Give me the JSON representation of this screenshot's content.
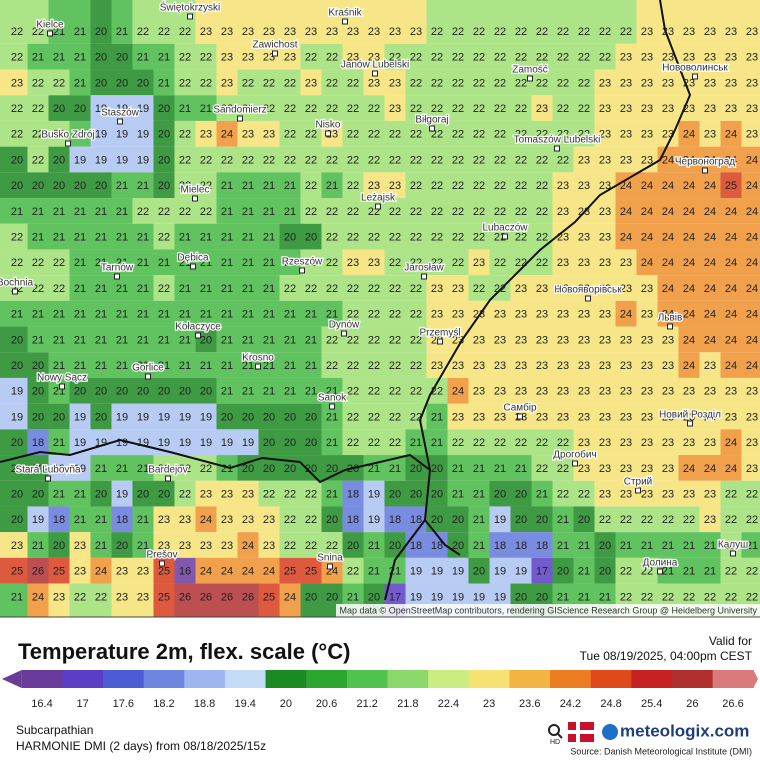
{
  "map": {
    "attribution": "Map data © OpenStreetMap contributors, rendering GIScience Research Group @ Heidelberg University",
    "places": [
      "Kielce",
      "Świętokrzyski",
      "Kraśnik",
      "Zawichost",
      "Janów Lubelski",
      "Zamość",
      "Нововолинськ",
      "Staszów",
      "Sandomierz",
      "Busko Zdrój",
      "Nisko",
      "Biłgoraj",
      "Tomaszów Lubelski",
      "Червоноград",
      "Mielec",
      "Leżajsk",
      "Lubaczów",
      "Tarnów",
      "Dębica",
      "Rzeszów",
      "Jarosław",
      "Новояворівськ",
      "Bochnia",
      "Львів",
      "Kołaczyce",
      "Dynów",
      "Przemyśl",
      "Krosno",
      "Gorlice",
      "Nowy Sącz",
      "Sanok",
      "Самбір",
      "Новий Розділ",
      "Stará Ľubovňa",
      "Bardejov",
      "Дрогобич",
      "Стрий",
      "Prešov",
      "Snina",
      "Долина",
      "Калуш"
    ],
    "grid": [
      [
        22,
        22,
        21,
        21,
        20,
        21,
        22,
        22,
        22,
        23,
        23,
        23,
        23,
        23,
        23,
        23,
        23,
        23,
        23,
        23,
        22,
        22,
        22,
        22,
        22,
        22,
        22,
        22,
        22,
        22,
        23,
        23,
        23,
        23,
        23,
        23
      ],
      [
        22,
        21,
        21,
        21,
        20,
        20,
        21,
        21,
        22,
        22,
        23,
        23,
        23,
        23,
        22,
        22,
        23,
        23,
        22,
        22,
        22,
        22,
        22,
        22,
        22,
        22,
        22,
        22,
        22,
        23,
        23,
        23,
        23,
        23,
        23,
        23
      ],
      [
        23,
        22,
        22,
        21,
        20,
        20,
        20,
        21,
        22,
        22,
        23,
        22,
        22,
        22,
        23,
        22,
        22,
        23,
        23,
        22,
        22,
        22,
        22,
        22,
        22,
        22,
        22,
        22,
        23,
        23,
        23,
        23,
        23,
        23,
        23,
        23
      ],
      [
        22,
        22,
        20,
        20,
        19,
        19,
        19,
        20,
        21,
        21,
        22,
        22,
        22,
        22,
        22,
        22,
        22,
        22,
        23,
        22,
        22,
        22,
        22,
        22,
        22,
        23,
        22,
        22,
        23,
        23,
        23,
        23,
        23,
        23,
        23,
        23
      ],
      [
        22,
        22,
        22,
        21,
        19,
        19,
        19,
        20,
        22,
        23,
        24,
        23,
        23,
        22,
        22,
        23,
        22,
        22,
        22,
        22,
        22,
        22,
        22,
        22,
        22,
        22,
        22,
        22,
        23,
        23,
        23,
        23,
        24,
        23,
        24,
        23
      ],
      [
        20,
        22,
        20,
        19,
        19,
        19,
        19,
        20,
        22,
        22,
        22,
        22,
        22,
        22,
        22,
        22,
        22,
        22,
        22,
        22,
        22,
        22,
        22,
        22,
        22,
        22,
        22,
        23,
        23,
        23,
        23,
        24,
        24,
        24,
        24,
        24
      ],
      [
        20,
        20,
        20,
        20,
        20,
        21,
        21,
        20,
        22,
        22,
        21,
        21,
        21,
        21,
        22,
        21,
        22,
        23,
        23,
        22,
        22,
        22,
        22,
        22,
        22,
        22,
        23,
        23,
        23,
        24,
        24,
        24,
        24,
        24,
        25,
        24
      ],
      [
        21,
        21,
        21,
        21,
        21,
        21,
        22,
        22,
        22,
        22,
        21,
        21,
        21,
        21,
        22,
        22,
        22,
        22,
        22,
        22,
        22,
        22,
        22,
        22,
        22,
        22,
        23,
        23,
        23,
        24,
        24,
        24,
        24,
        24,
        24,
        24
      ],
      [
        22,
        21,
        21,
        21,
        21,
        21,
        21,
        22,
        21,
        21,
        21,
        21,
        21,
        20,
        20,
        22,
        22,
        22,
        22,
        22,
        22,
        22,
        22,
        22,
        22,
        22,
        23,
        23,
        23,
        24,
        24,
        24,
        24,
        24,
        24,
        24
      ],
      [
        22,
        22,
        22,
        21,
        21,
        21,
        21,
        21,
        21,
        21,
        21,
        21,
        21,
        21,
        22,
        22,
        23,
        23,
        22,
        22,
        22,
        22,
        23,
        22,
        22,
        22,
        23,
        23,
        23,
        23,
        24,
        24,
        24,
        24,
        24,
        24
      ],
      [
        22,
        22,
        22,
        21,
        21,
        21,
        21,
        22,
        21,
        21,
        21,
        21,
        21,
        22,
        22,
        22,
        22,
        22,
        22,
        22,
        23,
        23,
        22,
        22,
        23,
        23,
        23,
        23,
        23,
        23,
        23,
        24,
        24,
        24,
        24,
        24
      ],
      [
        21,
        21,
        21,
        21,
        21,
        21,
        21,
        21,
        21,
        21,
        21,
        21,
        21,
        21,
        21,
        21,
        22,
        22,
        22,
        22,
        23,
        23,
        23,
        23,
        23,
        23,
        23,
        23,
        23,
        24,
        23,
        24,
        24,
        24,
        24,
        24
      ],
      [
        20,
        21,
        21,
        21,
        21,
        21,
        21,
        21,
        21,
        20,
        21,
        21,
        21,
        21,
        21,
        22,
        22,
        22,
        22,
        22,
        23,
        23,
        23,
        23,
        23,
        23,
        23,
        23,
        23,
        23,
        23,
        23,
        24,
        24,
        24,
        24
      ],
      [
        20,
        20,
        21,
        21,
        21,
        21,
        21,
        21,
        21,
        21,
        21,
        21,
        21,
        21,
        21,
        22,
        22,
        22,
        22,
        22,
        23,
        23,
        23,
        23,
        23,
        23,
        23,
        23,
        23,
        23,
        23,
        23,
        24,
        23,
        24,
        24
      ],
      [
        19,
        20,
        21,
        20,
        20,
        20,
        20,
        20,
        20,
        20,
        21,
        21,
        21,
        21,
        21,
        21,
        22,
        22,
        22,
        22,
        22,
        24,
        23,
        23,
        23,
        23,
        23,
        23,
        23,
        23,
        23,
        23,
        23,
        23,
        23,
        23
      ],
      [
        19,
        20,
        20,
        19,
        20,
        19,
        19,
        19,
        19,
        19,
        20,
        20,
        20,
        20,
        20,
        21,
        22,
        22,
        22,
        22,
        21,
        23,
        23,
        23,
        23,
        23,
        23,
        23,
        23,
        23,
        23,
        23,
        23,
        23,
        23,
        23
      ],
      [
        20,
        18,
        21,
        19,
        19,
        19,
        19,
        19,
        19,
        19,
        19,
        19,
        20,
        20,
        20,
        21,
        22,
        22,
        22,
        21,
        21,
        22,
        22,
        22,
        22,
        22,
        22,
        23,
        23,
        23,
        23,
        23,
        23,
        23,
        24,
        23
      ],
      [
        20,
        20,
        19,
        19,
        21,
        21,
        21,
        22,
        22,
        22,
        21,
        20,
        20,
        20,
        20,
        20,
        20,
        21,
        21,
        20,
        20,
        21,
        21,
        21,
        21,
        22,
        22,
        23,
        23,
        23,
        23,
        23,
        24,
        24,
        24,
        23
      ],
      [
        20,
        20,
        21,
        21,
        20,
        19,
        20,
        20,
        22,
        23,
        23,
        23,
        22,
        22,
        22,
        21,
        18,
        19,
        20,
        20,
        20,
        21,
        21,
        20,
        20,
        21,
        22,
        22,
        23,
        23,
        23,
        23,
        23,
        23,
        22,
        22
      ],
      [
        20,
        19,
        18,
        21,
        21,
        18,
        21,
        23,
        23,
        24,
        23,
        23,
        23,
        22,
        22,
        20,
        18,
        19,
        18,
        18,
        20,
        20,
        21,
        19,
        20,
        20,
        21,
        20,
        22,
        22,
        22,
        22,
        22,
        23,
        22,
        22
      ],
      [
        23,
        21,
        20,
        23,
        21,
        20,
        21,
        23,
        23,
        23,
        23,
        24,
        23,
        22,
        22,
        22,
        20,
        21,
        20,
        18,
        18,
        20,
        21,
        18,
        18,
        18,
        21,
        21,
        20,
        21,
        21,
        21,
        21,
        21,
        22,
        21
      ],
      [
        25,
        26,
        25,
        23,
        24,
        23,
        23,
        25,
        16,
        24,
        24,
        24,
        24,
        25,
        25,
        24,
        22,
        21,
        21,
        19,
        19,
        19,
        20,
        19,
        19,
        17,
        20,
        21,
        20,
        22,
        22,
        21,
        21,
        21,
        22,
        22
      ],
      [
        21,
        24,
        23,
        22,
        22,
        23,
        23,
        25,
        26,
        26,
        26,
        26,
        25,
        24,
        20,
        20,
        21,
        20,
        17,
        19,
        19,
        19,
        19,
        19,
        20,
        20,
        21,
        21,
        21,
        22,
        22,
        22,
        22,
        22,
        22,
        22
      ]
    ]
  },
  "legend": {
    "title": "Temperature 2m, flex. scale (°C)",
    "valid_label": "Valid for",
    "valid_time": "Tue 08/19/2025, 04:00pm CEST",
    "ticks": [
      16.4,
      17,
      17.6,
      18.2,
      18.8,
      19.4,
      20,
      20.6,
      21.2,
      21.8,
      22.4,
      23,
      23.6,
      24.2,
      24.8,
      25.4,
      26,
      26.6
    ],
    "colors": [
      "#6b3b9c",
      "#5b3ec6",
      "#4c5cd4",
      "#6d86df",
      "#9db5ee",
      "#c4dbf6",
      "#1c8a22",
      "#2ba62e",
      "#52c24e",
      "#8ad86c",
      "#cbec82",
      "#f6e272",
      "#f2b443",
      "#ec7d22",
      "#df4a1a",
      "#c72222",
      "#b03030",
      "#db7a7a"
    ]
  },
  "footer": {
    "region": "Subcarpathian",
    "model": "HARMONIE DMI (2 days)  from  08/18/2025/15z",
    "hd": "HD",
    "brand": "meteologix.com",
    "source": "Source: Danish Meteorological Institute (DMI)"
  }
}
